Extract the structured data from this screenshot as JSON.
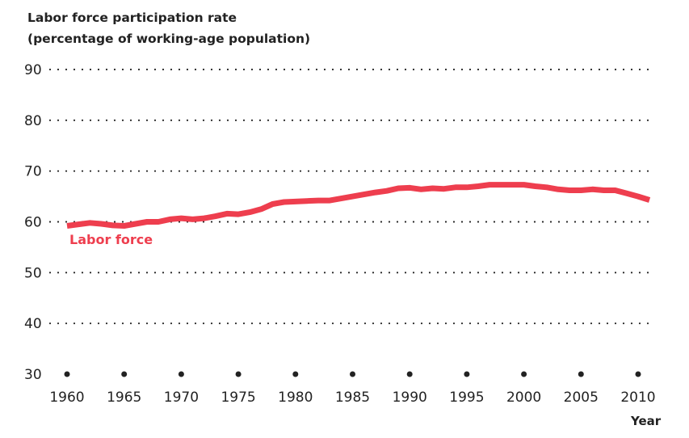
{
  "chart_data": {
    "type": "line",
    "title": "Labor force participation rate",
    "subtitle": "(percentage of working-age population)",
    "xlabel": "Year",
    "ylabel": "",
    "xlim": [
      1960,
      2011
    ],
    "ylim": [
      30,
      90
    ],
    "yticks": [
      30,
      40,
      50,
      60,
      70,
      80,
      90
    ],
    "xticks": [
      1960,
      1965,
      1970,
      1975,
      1980,
      1985,
      1990,
      1995,
      2000,
      2005,
      2010
    ],
    "grid": "horizontal dotted",
    "series": [
      {
        "name": "Labor force",
        "color": "#ee3e4e",
        "x": [
          1960,
          1961,
          1962,
          1963,
          1964,
          1965,
          1966,
          1967,
          1968,
          1969,
          1970,
          1971,
          1972,
          1973,
          1974,
          1975,
          1976,
          1977,
          1978,
          1979,
          1980,
          1981,
          1982,
          1983,
          1984,
          1985,
          1986,
          1987,
          1988,
          1989,
          1990,
          1991,
          1992,
          1993,
          1994,
          1995,
          1996,
          1997,
          1998,
          1999,
          2000,
          2001,
          2002,
          2003,
          2004,
          2005,
          2006,
          2007,
          2008,
          2009,
          2010,
          2011
        ],
        "values": [
          59.2,
          59.5,
          59.8,
          59.6,
          59.3,
          59.2,
          59.6,
          60.0,
          60.0,
          60.5,
          60.7,
          60.5,
          60.7,
          61.1,
          61.6,
          61.5,
          61.9,
          62.5,
          63.5,
          63.9,
          64.0,
          64.1,
          64.2,
          64.2,
          64.6,
          65.0,
          65.4,
          65.8,
          66.1,
          66.6,
          66.7,
          66.4,
          66.6,
          66.5,
          66.8,
          66.8,
          67.0,
          67.3,
          67.3,
          67.3,
          67.3,
          67.0,
          66.8,
          66.4,
          66.2,
          66.2,
          66.4,
          66.2,
          66.2,
          65.6,
          65.0,
          64.3
        ]
      }
    ]
  }
}
